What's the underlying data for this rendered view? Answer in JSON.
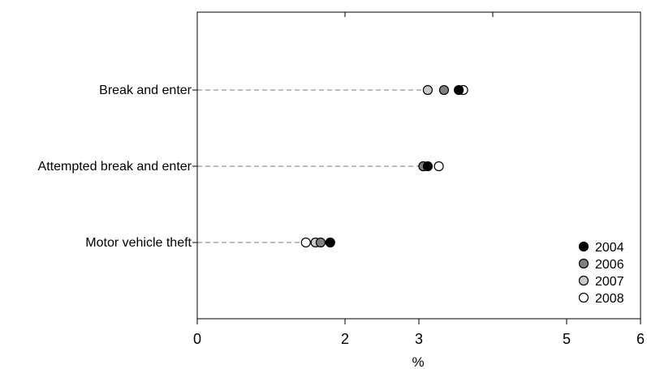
{
  "chart_data": {
    "type": "scatter",
    "xlabel": "%",
    "ylabel": "",
    "xlim": [
      0,
      6
    ],
    "xticks": [
      "0",
      "2",
      "3",
      "5",
      "6"
    ],
    "xtick_values": [
      0,
      2,
      3,
      5,
      6
    ],
    "top_tick_values": [
      0,
      2,
      4,
      6
    ],
    "categories": [
      "Break and enter",
      "Attempted break and enter",
      "Motor vehicle theft"
    ],
    "grid": false,
    "legend_position": "bottom-right",
    "series": [
      {
        "name": "2004",
        "color": "#000000",
        "values": [
          3.54,
          3.12,
          1.8
        ]
      },
      {
        "name": "2006",
        "color": "#808080",
        "values": [
          3.34,
          3.06,
          1.67
        ]
      },
      {
        "name": "2007",
        "color": "#c8c8c8",
        "values": [
          3.12,
          3.06,
          1.6
        ]
      },
      {
        "name": "2008",
        "color": "#ffffff",
        "values": [
          3.6,
          3.27,
          1.47
        ]
      }
    ]
  }
}
